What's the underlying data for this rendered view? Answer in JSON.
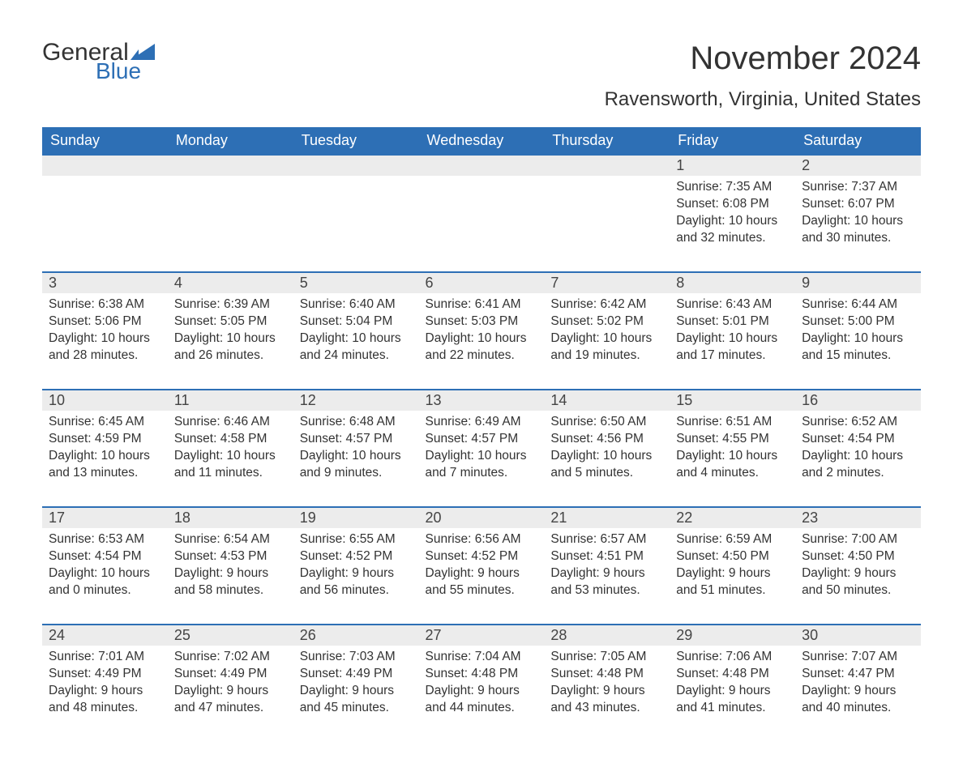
{
  "logo": {
    "general": "General",
    "blue": "Blue",
    "flag_color": "#2d6fb5"
  },
  "title": "November 2024",
  "location": "Ravensworth, Virginia, United States",
  "colors": {
    "header_bg": "#2d6fb5",
    "header_text": "#ffffff",
    "daynum_bg": "#ececec",
    "text": "#333333",
    "week_border": "#2d6fb5",
    "page_bg": "#ffffff"
  },
  "typography": {
    "title_fontsize": 40,
    "location_fontsize": 24,
    "header_fontsize": 18,
    "daynum_fontsize": 18,
    "body_fontsize": 15.5,
    "font_family": "Arial, Helvetica, sans-serif"
  },
  "weekdays": [
    "Sunday",
    "Monday",
    "Tuesday",
    "Wednesday",
    "Thursday",
    "Friday",
    "Saturday"
  ],
  "weeks": [
    [
      null,
      null,
      null,
      null,
      null,
      {
        "n": 1,
        "sr": "7:35 AM",
        "ss": "6:08 PM",
        "dl": "10 hours and 32 minutes."
      },
      {
        "n": 2,
        "sr": "7:37 AM",
        "ss": "6:07 PM",
        "dl": "10 hours and 30 minutes."
      }
    ],
    [
      {
        "n": 3,
        "sr": "6:38 AM",
        "ss": "5:06 PM",
        "dl": "10 hours and 28 minutes."
      },
      {
        "n": 4,
        "sr": "6:39 AM",
        "ss": "5:05 PM",
        "dl": "10 hours and 26 minutes."
      },
      {
        "n": 5,
        "sr": "6:40 AM",
        "ss": "5:04 PM",
        "dl": "10 hours and 24 minutes."
      },
      {
        "n": 6,
        "sr": "6:41 AM",
        "ss": "5:03 PM",
        "dl": "10 hours and 22 minutes."
      },
      {
        "n": 7,
        "sr": "6:42 AM",
        "ss": "5:02 PM",
        "dl": "10 hours and 19 minutes."
      },
      {
        "n": 8,
        "sr": "6:43 AM",
        "ss": "5:01 PM",
        "dl": "10 hours and 17 minutes."
      },
      {
        "n": 9,
        "sr": "6:44 AM",
        "ss": "5:00 PM",
        "dl": "10 hours and 15 minutes."
      }
    ],
    [
      {
        "n": 10,
        "sr": "6:45 AM",
        "ss": "4:59 PM",
        "dl": "10 hours and 13 minutes."
      },
      {
        "n": 11,
        "sr": "6:46 AM",
        "ss": "4:58 PM",
        "dl": "10 hours and 11 minutes."
      },
      {
        "n": 12,
        "sr": "6:48 AM",
        "ss": "4:57 PM",
        "dl": "10 hours and 9 minutes."
      },
      {
        "n": 13,
        "sr": "6:49 AM",
        "ss": "4:57 PM",
        "dl": "10 hours and 7 minutes."
      },
      {
        "n": 14,
        "sr": "6:50 AM",
        "ss": "4:56 PM",
        "dl": "10 hours and 5 minutes."
      },
      {
        "n": 15,
        "sr": "6:51 AM",
        "ss": "4:55 PM",
        "dl": "10 hours and 4 minutes."
      },
      {
        "n": 16,
        "sr": "6:52 AM",
        "ss": "4:54 PM",
        "dl": "10 hours and 2 minutes."
      }
    ],
    [
      {
        "n": 17,
        "sr": "6:53 AM",
        "ss": "4:54 PM",
        "dl": "10 hours and 0 minutes."
      },
      {
        "n": 18,
        "sr": "6:54 AM",
        "ss": "4:53 PM",
        "dl": "9 hours and 58 minutes."
      },
      {
        "n": 19,
        "sr": "6:55 AM",
        "ss": "4:52 PM",
        "dl": "9 hours and 56 minutes."
      },
      {
        "n": 20,
        "sr": "6:56 AM",
        "ss": "4:52 PM",
        "dl": "9 hours and 55 minutes."
      },
      {
        "n": 21,
        "sr": "6:57 AM",
        "ss": "4:51 PM",
        "dl": "9 hours and 53 minutes."
      },
      {
        "n": 22,
        "sr": "6:59 AM",
        "ss": "4:50 PM",
        "dl": "9 hours and 51 minutes."
      },
      {
        "n": 23,
        "sr": "7:00 AM",
        "ss": "4:50 PM",
        "dl": "9 hours and 50 minutes."
      }
    ],
    [
      {
        "n": 24,
        "sr": "7:01 AM",
        "ss": "4:49 PM",
        "dl": "9 hours and 48 minutes."
      },
      {
        "n": 25,
        "sr": "7:02 AM",
        "ss": "4:49 PM",
        "dl": "9 hours and 47 minutes."
      },
      {
        "n": 26,
        "sr": "7:03 AM",
        "ss": "4:49 PM",
        "dl": "9 hours and 45 minutes."
      },
      {
        "n": 27,
        "sr": "7:04 AM",
        "ss": "4:48 PM",
        "dl": "9 hours and 44 minutes."
      },
      {
        "n": 28,
        "sr": "7:05 AM",
        "ss": "4:48 PM",
        "dl": "9 hours and 43 minutes."
      },
      {
        "n": 29,
        "sr": "7:06 AM",
        "ss": "4:48 PM",
        "dl": "9 hours and 41 minutes."
      },
      {
        "n": 30,
        "sr": "7:07 AM",
        "ss": "4:47 PM",
        "dl": "9 hours and 40 minutes."
      }
    ]
  ],
  "labels": {
    "sunrise": "Sunrise: ",
    "sunset": "Sunset: ",
    "daylight": "Daylight: "
  }
}
